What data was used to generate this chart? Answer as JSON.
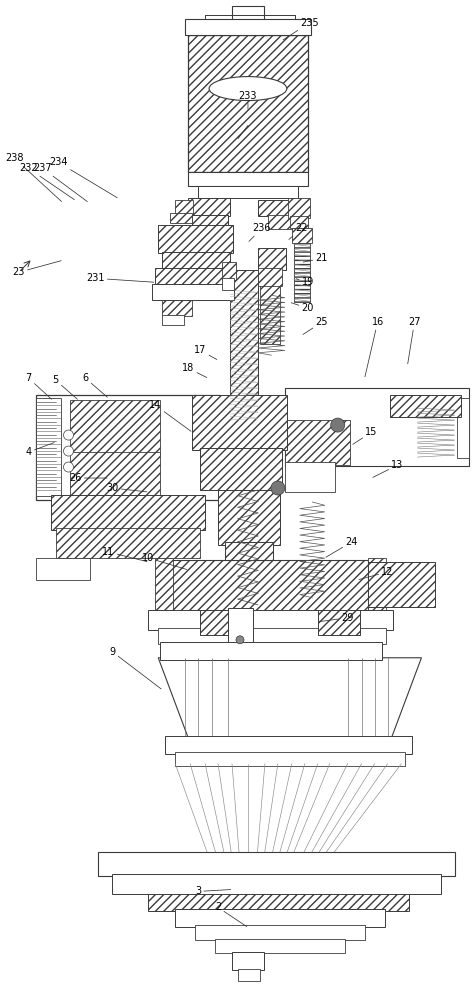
{
  "bg": "#ffffff",
  "lc": "#3a3a3a",
  "fs": 7.0,
  "figsize": [
    4.72,
    10.0
  ],
  "dpi": 100,
  "label_data": [
    [
      "235",
      310,
      22,
      282,
      40
    ],
    [
      "233",
      248,
      95,
      248,
      110
    ],
    [
      "238",
      14,
      158,
      62,
      202
    ],
    [
      "232",
      28,
      168,
      75,
      200
    ],
    [
      "237",
      42,
      168,
      88,
      202
    ],
    [
      "234",
      58,
      162,
      118,
      198
    ],
    [
      "236",
      262,
      228,
      248,
      242
    ],
    [
      "22",
      302,
      228,
      288,
      240
    ],
    [
      "21",
      322,
      258,
      302,
      262
    ],
    [
      "19",
      308,
      282,
      295,
      278
    ],
    [
      "20",
      308,
      308,
      290,
      302
    ],
    [
      "25",
      322,
      322,
      302,
      335
    ],
    [
      "16",
      378,
      322,
      365,
      378
    ],
    [
      "27",
      415,
      322,
      408,
      365
    ],
    [
      "23",
      18,
      272,
      62,
      260
    ],
    [
      "231",
      95,
      278,
      155,
      282
    ],
    [
      "17",
      200,
      350,
      218,
      360
    ],
    [
      "18",
      188,
      368,
      208,
      378
    ],
    [
      "7",
      28,
      378,
      52,
      400
    ],
    [
      "5",
      55,
      380,
      78,
      400
    ],
    [
      "6",
      85,
      378,
      108,
      398
    ],
    [
      "14",
      155,
      405,
      192,
      432
    ],
    [
      "15",
      372,
      432,
      352,
      445
    ],
    [
      "4",
      28,
      452,
      55,
      442
    ],
    [
      "26",
      75,
      478,
      108,
      478
    ],
    [
      "30",
      112,
      488,
      148,
      492
    ],
    [
      "13",
      398,
      465,
      372,
      478
    ],
    [
      "10",
      148,
      558,
      188,
      570
    ],
    [
      "11",
      108,
      552,
      148,
      562
    ],
    [
      "24",
      352,
      542,
      325,
      558
    ],
    [
      "12",
      388,
      572,
      358,
      580
    ],
    [
      "29",
      348,
      618,
      318,
      622
    ],
    [
      "9",
      112,
      652,
      162,
      690
    ],
    [
      "3",
      198,
      892,
      232,
      890
    ],
    [
      "2",
      218,
      908,
      248,
      928
    ]
  ]
}
